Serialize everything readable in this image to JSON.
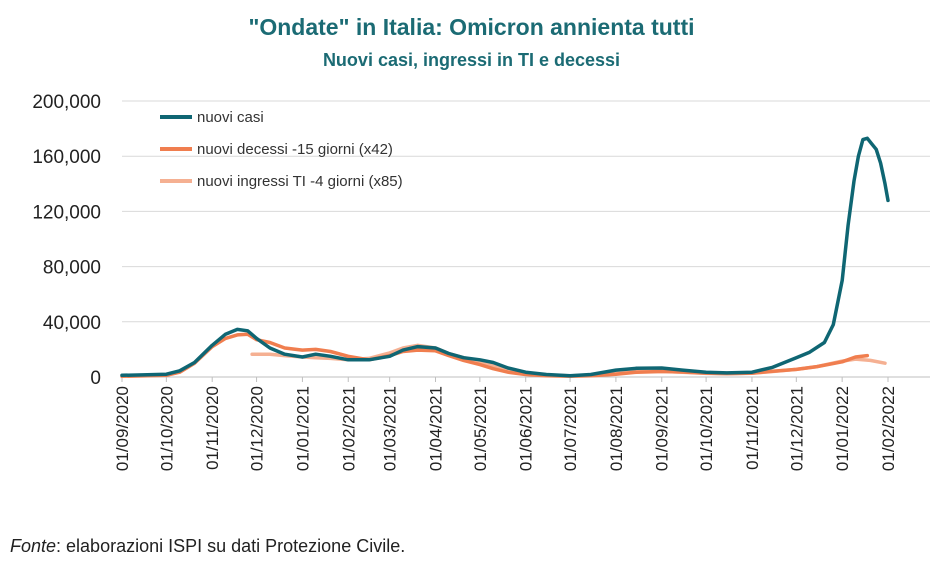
{
  "chart_data": {
    "type": "line",
    "title": "\"Ondate\" in Italia: Omicron annienta tutti",
    "subtitle": "Nuovi casi, ingressi in TI e decessi",
    "ylim": [
      0,
      200000
    ],
    "yticks": [
      "200,000",
      "160,000",
      "120,000",
      "80,000",
      "40,000",
      "0"
    ],
    "ytick_values": [
      200000,
      160000,
      120000,
      80000,
      40000,
      0
    ],
    "xticks": [
      "01/09/2020",
      "01/10/2020",
      "01/11/2020",
      "01/12/2020",
      "01/01/2021",
      "01/02/2021",
      "01/03/2021",
      "01/04/2021",
      "01/05/2021",
      "01/06/2021",
      "01/07/2021",
      "01/08/2021",
      "01/09/2021",
      "01/10/2021",
      "01/11/2021",
      "01/12/2021",
      "01/01/2022",
      "01/02/2022"
    ],
    "x_range": [
      "2020-09-01",
      "2022-02-01"
    ],
    "legend_position": "top-left",
    "series": [
      {
        "name": "nuovi casi",
        "color": "#0f6673",
        "points": [
          [
            "2020-09-01",
            1200
          ],
          [
            "2020-09-15",
            1500
          ],
          [
            "2020-10-01",
            2000
          ],
          [
            "2020-10-10",
            4500
          ],
          [
            "2020-10-20",
            10500
          ],
          [
            "2020-11-01",
            23000
          ],
          [
            "2020-11-10",
            31000
          ],
          [
            "2020-11-18",
            34500
          ],
          [
            "2020-11-25",
            33500
          ],
          [
            "2020-12-01",
            28000
          ],
          [
            "2020-12-10",
            21000
          ],
          [
            "2020-12-20",
            16500
          ],
          [
            "2021-01-01",
            14500
          ],
          [
            "2021-01-10",
            16500
          ],
          [
            "2021-01-20",
            15000
          ],
          [
            "2021-02-01",
            12500
          ],
          [
            "2021-02-15",
            12500
          ],
          [
            "2021-03-01",
            15000
          ],
          [
            "2021-03-10",
            19500
          ],
          [
            "2021-03-20",
            22000
          ],
          [
            "2021-04-01",
            21000
          ],
          [
            "2021-04-10",
            17000
          ],
          [
            "2021-04-20",
            14000
          ],
          [
            "2021-05-01",
            12500
          ],
          [
            "2021-05-10",
            10500
          ],
          [
            "2021-05-20",
            6500
          ],
          [
            "2021-06-01",
            3500
          ],
          [
            "2021-06-15",
            1800
          ],
          [
            "2021-07-01",
            900
          ],
          [
            "2021-07-15",
            1800
          ],
          [
            "2021-08-01",
            5000
          ],
          [
            "2021-08-15",
            6300
          ],
          [
            "2021-09-01",
            6500
          ],
          [
            "2021-09-15",
            5000
          ],
          [
            "2021-10-01",
            3500
          ],
          [
            "2021-10-15",
            3000
          ],
          [
            "2021-11-01",
            3500
          ],
          [
            "2021-11-15",
            7000
          ],
          [
            "2021-12-01",
            14000
          ],
          [
            "2021-12-10",
            18000
          ],
          [
            "2021-12-20",
            25000
          ],
          [
            "2021-12-26",
            38000
          ],
          [
            "2022-01-01",
            70000
          ],
          [
            "2022-01-05",
            110000
          ],
          [
            "2022-01-09",
            142000
          ],
          [
            "2022-01-12",
            160000
          ],
          [
            "2022-01-15",
            172000
          ],
          [
            "2022-01-18",
            173000
          ],
          [
            "2022-01-21",
            169000
          ],
          [
            "2022-01-24",
            165000
          ],
          [
            "2022-01-27",
            155000
          ],
          [
            "2022-01-30",
            140000
          ],
          [
            "2022-02-01",
            128000
          ]
        ]
      },
      {
        "name": "nuovi decessi -15 giorni (x42)",
        "color": "#f07e4f",
        "points": [
          [
            "2020-09-01",
            500
          ],
          [
            "2020-09-15",
            800
          ],
          [
            "2020-10-01",
            1200
          ],
          [
            "2020-10-10",
            3500
          ],
          [
            "2020-10-20",
            10000
          ],
          [
            "2020-11-01",
            22000
          ],
          [
            "2020-11-10",
            28000
          ],
          [
            "2020-11-18",
            30500
          ],
          [
            "2020-11-25",
            31000
          ],
          [
            "2020-12-01",
            27000
          ],
          [
            "2020-12-10",
            25000
          ],
          [
            "2020-12-20",
            21000
          ],
          [
            "2021-01-01",
            19500
          ],
          [
            "2021-01-10",
            20000
          ],
          [
            "2021-01-20",
            18500
          ],
          [
            "2021-02-01",
            15000
          ],
          [
            "2021-02-15",
            12500
          ],
          [
            "2021-03-01",
            15500
          ],
          [
            "2021-03-10",
            18500
          ],
          [
            "2021-03-20",
            19500
          ],
          [
            "2021-04-01",
            19000
          ],
          [
            "2021-04-10",
            15500
          ],
          [
            "2021-04-20",
            12000
          ],
          [
            "2021-05-01",
            9000
          ],
          [
            "2021-05-10",
            6000
          ],
          [
            "2021-05-20",
            3500
          ],
          [
            "2021-06-01",
            1800
          ],
          [
            "2021-06-15",
            900
          ],
          [
            "2021-07-01",
            500
          ],
          [
            "2021-07-15",
            900
          ],
          [
            "2021-08-01",
            2000
          ],
          [
            "2021-08-15",
            3500
          ],
          [
            "2021-09-01",
            4000
          ],
          [
            "2021-09-15",
            3600
          ],
          [
            "2021-10-01",
            2800
          ],
          [
            "2021-10-15",
            2500
          ],
          [
            "2021-11-01",
            2800
          ],
          [
            "2021-11-15",
            4200
          ],
          [
            "2021-12-01",
            5500
          ],
          [
            "2021-12-15",
            7500
          ],
          [
            "2022-01-01",
            11000
          ],
          [
            "2022-01-10",
            14500
          ],
          [
            "2022-01-18",
            15500
          ]
        ]
      },
      {
        "name": "nuovi ingressi TI -4 giorni (x85)",
        "color": "#f5b092",
        "points": [
          [
            "2020-11-28",
            16500
          ],
          [
            "2020-12-10",
            16500
          ],
          [
            "2020-12-20",
            15500
          ],
          [
            "2021-01-01",
            14500
          ],
          [
            "2021-01-10",
            14000
          ],
          [
            "2021-01-20",
            13500
          ],
          [
            "2021-02-01",
            12500
          ],
          [
            "2021-02-15",
            13500
          ],
          [
            "2021-03-01",
            17500
          ],
          [
            "2021-03-10",
            21000
          ],
          [
            "2021-03-20",
            23000
          ],
          [
            "2021-04-01",
            21000
          ],
          [
            "2021-04-10",
            17000
          ],
          [
            "2021-04-20",
            14000
          ],
          [
            "2021-05-01",
            11000
          ],
          [
            "2021-05-10",
            8000
          ],
          [
            "2021-05-20",
            5000
          ],
          [
            "2021-06-01",
            2800
          ],
          [
            "2021-06-15",
            1500
          ],
          [
            "2021-07-01",
            800
          ],
          [
            "2021-07-15",
            1500
          ],
          [
            "2021-08-01",
            3000
          ],
          [
            "2021-08-15",
            4000
          ],
          [
            "2021-09-01",
            4200
          ],
          [
            "2021-09-15",
            3500
          ],
          [
            "2021-10-01",
            2600
          ],
          [
            "2021-10-15",
            2300
          ],
          [
            "2021-11-01",
            2700
          ],
          [
            "2021-11-15",
            4000
          ],
          [
            "2021-12-01",
            5500
          ],
          [
            "2021-12-15",
            7500
          ],
          [
            "2022-01-01",
            11500
          ],
          [
            "2022-01-10",
            13000
          ],
          [
            "2022-01-20",
            12000
          ],
          [
            "2022-01-30",
            10000
          ]
        ]
      }
    ]
  },
  "source": {
    "label": "Fonte",
    "text": ": elaborazioni ISPI su dati Protezione Civile."
  }
}
